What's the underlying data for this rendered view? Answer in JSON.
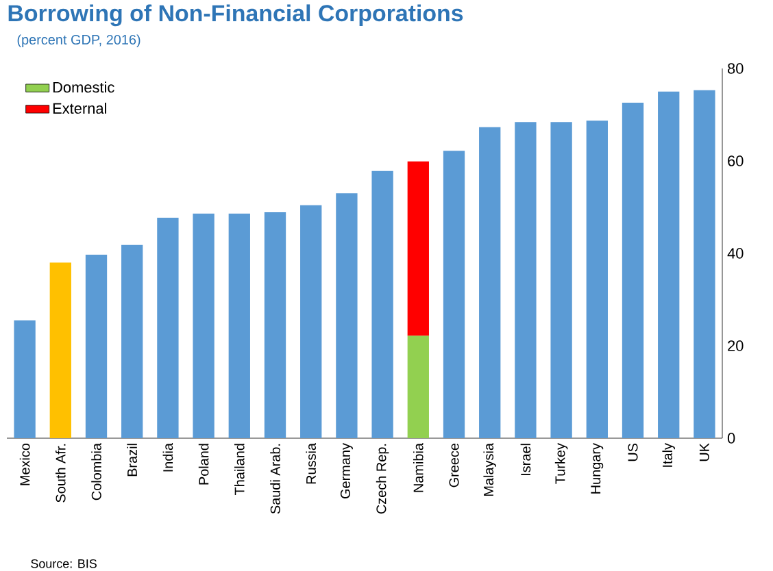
{
  "chart_data": {
    "type": "bar",
    "stacked": true,
    "title": "Borrowing of Non-Financial Corporations",
    "subtitle": "(percent GDP, 2016)",
    "categories": [
      "Mexico",
      "South Afr.",
      "Colombia",
      "Brazil",
      "India",
      "Poland",
      "Thailand",
      "Saudi Arab.",
      "Russia",
      "Germany",
      "Czech Rep.",
      "Namibia",
      "Greece",
      "Malaysia",
      "Israel",
      "Turkey",
      "Hungary",
      "US",
      "Italy",
      "UK"
    ],
    "series": [
      {
        "name": "Domestic",
        "color": "#92d050",
        "values": [
          25.5,
          38,
          39.7,
          41.8,
          47.7,
          48.6,
          48.6,
          48.9,
          50.4,
          53,
          57.8,
          22.2,
          62.2,
          67.3,
          68.4,
          68.4,
          68.7,
          72.6,
          75,
          75.3
        ],
        "colors": [
          "#5b9bd5",
          "#ffc000",
          "#5b9bd5",
          "#5b9bd5",
          "#5b9bd5",
          "#5b9bd5",
          "#5b9bd5",
          "#5b9bd5",
          "#5b9bd5",
          "#5b9bd5",
          "#5b9bd5",
          "#92d050",
          "#5b9bd5",
          "#5b9bd5",
          "#5b9bd5",
          "#5b9bd5",
          "#5b9bd5",
          "#5b9bd5",
          "#5b9bd5",
          "#5b9bd5"
        ]
      },
      {
        "name": "External",
        "color": "#ff0000",
        "values": [
          null,
          null,
          null,
          null,
          null,
          null,
          null,
          null,
          null,
          null,
          null,
          37.7,
          null,
          null,
          null,
          null,
          null,
          null,
          null,
          null
        ]
      }
    ],
    "ylim": [
      0,
      80
    ],
    "yticks": [
      0,
      20,
      40,
      60,
      80
    ],
    "grid": false,
    "legend": "top left",
    "annotations": [
      "Source: BIS"
    ]
  }
}
